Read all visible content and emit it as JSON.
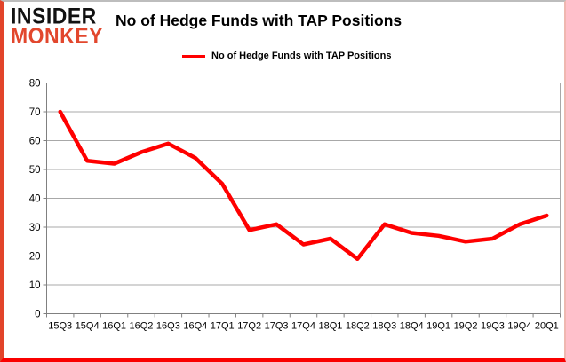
{
  "logo": {
    "line1": "INSIDER",
    "line2": "MONKEY"
  },
  "header": {
    "title": "No of Hedge Funds with TAP Positions"
  },
  "legend": {
    "label": "No of Hedge Funds with TAP Positions"
  },
  "colors": {
    "line": "#ff0000",
    "logo_accent": "#e2472d",
    "grid": "#a8a8a8",
    "axis": "#808080",
    "frame_left": "#e2442a",
    "frame_bottom": "#fa0000"
  },
  "chart_data": {
    "type": "line",
    "title": "No of Hedge Funds with TAP Positions",
    "categories": [
      "15Q3",
      "15Q4",
      "16Q1",
      "16Q2",
      "16Q3",
      "16Q4",
      "17Q1",
      "17Q2",
      "17Q3",
      "17Q4",
      "18Q1",
      "18Q2",
      "18Q3",
      "18Q4",
      "19Q1",
      "19Q2",
      "19Q3",
      "19Q4",
      "20Q1"
    ],
    "series": [
      {
        "name": "No of Hedge Funds with TAP Positions",
        "color": "#ff0000",
        "values": [
          70,
          53,
          52,
          56,
          59,
          54,
          45,
          29,
          31,
          24,
          26,
          19,
          31,
          28,
          27,
          25,
          26,
          31,
          34
        ]
      }
    ],
    "xlabel": "",
    "ylabel": "",
    "ylim": [
      0,
      80
    ],
    "ytick_interval": 10,
    "yticks": [
      0,
      10,
      20,
      30,
      40,
      50,
      60,
      70,
      80
    ],
    "grid": true,
    "legend_position": "top"
  }
}
